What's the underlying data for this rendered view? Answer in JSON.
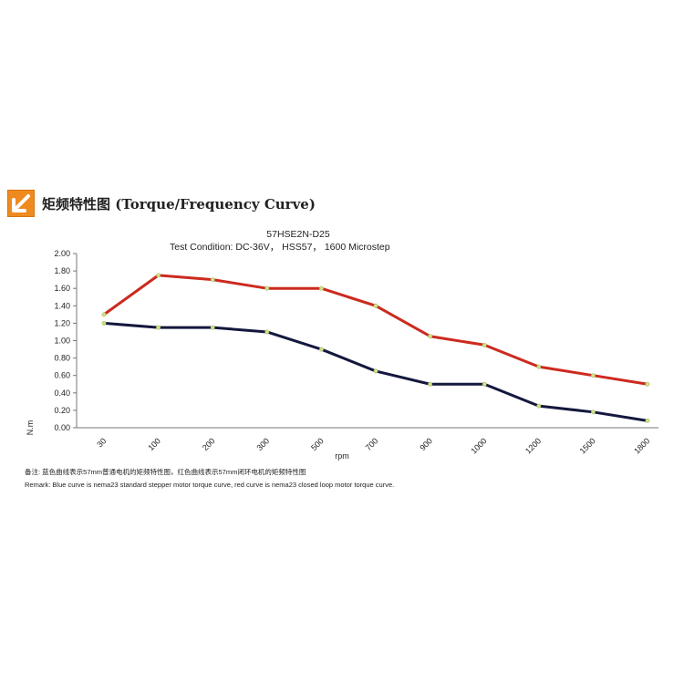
{
  "header": {
    "icon": "orange-arrow-icon",
    "title": "矩频特性图 (Torque/Frequency Curve)"
  },
  "chart_data": {
    "type": "line",
    "title": "57HSE2N-D25",
    "subtitle": "Test Condition:   DC-36V， HSS57，  1600 Microstep",
    "xlabel": "rpm",
    "ylabel": "N.m",
    "categories": [
      "30",
      "100",
      "200",
      "300",
      "500",
      "700",
      "900",
      "1000",
      "1200",
      "1500",
      "1800"
    ],
    "ylim": [
      0,
      2
    ],
    "yticks": [
      "2.00",
      "1.80",
      "1.60",
      "1.40",
      "1.20",
      "1.00",
      "0.80",
      "0.60",
      "0.40",
      "0.20",
      "0.00"
    ],
    "grid": false,
    "series": [
      {
        "color": "#cc2a1f",
        "values": [
          1.3,
          1.75,
          1.7,
          1.6,
          1.6,
          1.4,
          1.05,
          0.95,
          0.7,
          0.6,
          0.5
        ]
      },
      {
        "color": "#14183e",
        "values": [
          1.2,
          1.15,
          1.15,
          1.1,
          0.9,
          0.65,
          0.5,
          0.5,
          0.25,
          0.18,
          0.08
        ]
      }
    ]
  },
  "remarks": {
    "cn": "备注:   蓝色曲线表示57mm普通电机的矩频特性图，红色曲线表示57mm闭环电机的矩频特性图",
    "en": "Remark: Blue curve is nema23 standard stepper motor torque curve, red curve is nema23 closed loop motor torque curve."
  }
}
